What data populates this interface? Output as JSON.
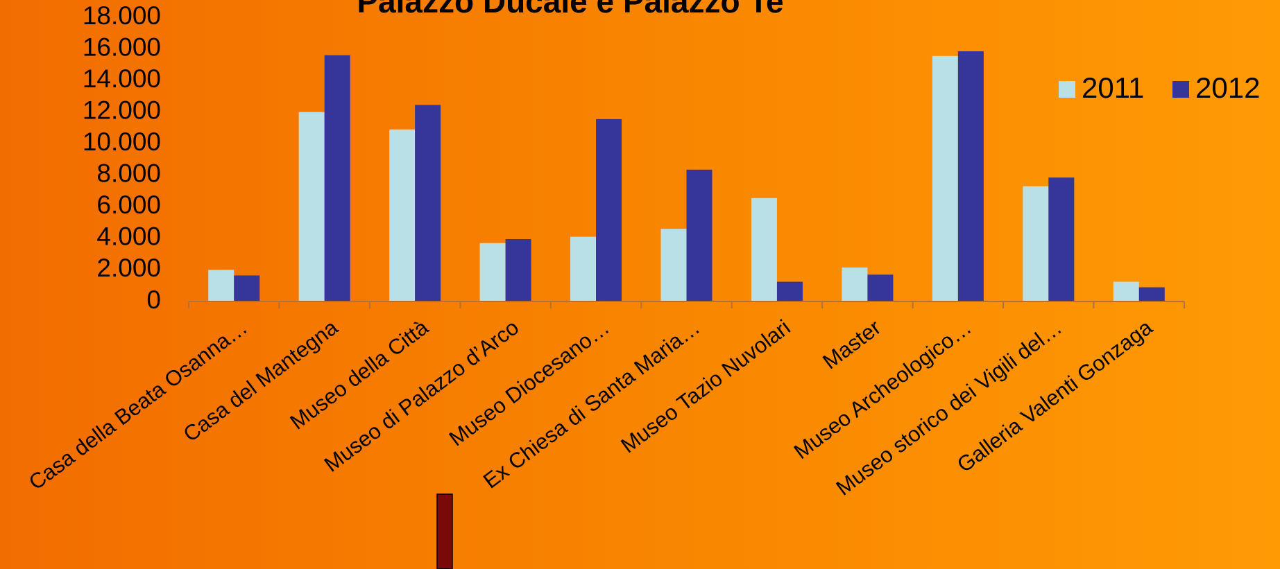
{
  "chart_data": {
    "type": "bar",
    "title": "Palazzo Ducale e Palazzo Te",
    "categories": [
      "Casa della Beata Osanna…",
      "Casa del Mantegna",
      "Museo della Città",
      "Museo di Palazzo d’Arco",
      "Museo Diocesano…",
      "Ex Chiesa di Santa Maria…",
      "Museo Tazio Nuvolari",
      "Master",
      "Museo Archeologico…",
      "Museo storico dei Vigili del…",
      "Galleria Valenti Gonzaga"
    ],
    "series": [
      {
        "name": "2011",
        "color": "#b8e0e6",
        "values": [
          2000,
          12000,
          10900,
          3700,
          4100,
          4600,
          6550,
          2150,
          15550,
          7300,
          1250
        ]
      },
      {
        "name": "2012",
        "color": "#35359a",
        "values": [
          1650,
          15600,
          12450,
          3950,
          11550,
          8350,
          1250,
          1700,
          15850,
          7850,
          900
        ]
      }
    ],
    "ylim": [
      0,
      18000
    ],
    "yticks": [
      0,
      2000,
      4000,
      6000,
      8000,
      10000,
      12000,
      14000,
      16000,
      18000
    ],
    "ytick_labels": [
      "0",
      "2.000",
      "4.000",
      "6.000",
      "8.000",
      "10.000",
      "12.000",
      "14.000",
      "16.000",
      "18.000"
    ],
    "legend_position": "top-right",
    "grid": false,
    "xlabel": "",
    "ylabel": ""
  },
  "style": {
    "axis_color": "#b3703a",
    "marker_color": "#7a0a0a"
  }
}
